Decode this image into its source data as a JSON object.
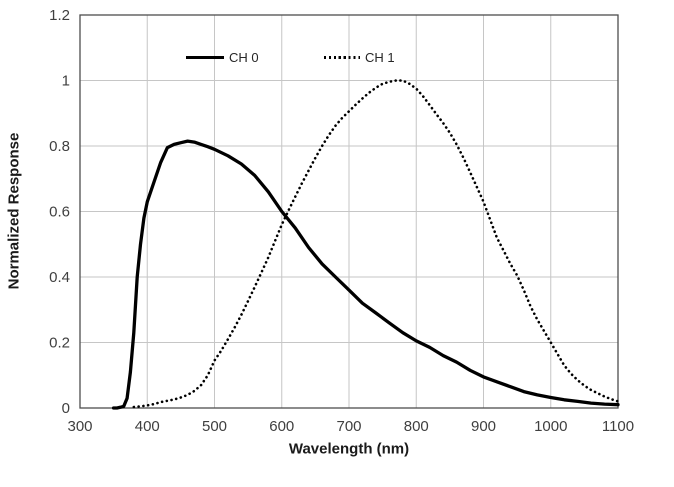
{
  "chart_data": {
    "type": "line",
    "title": "",
    "xlabel": "Wavelength (nm)",
    "ylabel": "Normalized Response",
    "xlim": [
      300,
      1100
    ],
    "ylim": [
      0,
      1.2
    ],
    "grid": true,
    "legend_position": "top-inside",
    "x_ticks": [
      300,
      400,
      500,
      600,
      700,
      800,
      900,
      1000,
      1100
    ],
    "x_tick_labels": [
      "300",
      "400",
      "500",
      "600",
      "700",
      "800",
      "900",
      "1000",
      "1100"
    ],
    "y_ticks": [
      0,
      0.2,
      0.4,
      0.6,
      0.8,
      1.0,
      1.2
    ],
    "y_tick_labels": [
      "0",
      "0.2",
      "0.4",
      "0.6",
      "0.8",
      "1",
      "1.2"
    ],
    "series": [
      {
        "name": "CH 0",
        "style": "solid",
        "color": "#000000",
        "x": [
          350,
          355,
          360,
          365,
          370,
          375,
          380,
          385,
          390,
          395,
          400,
          410,
          420,
          430,
          440,
          450,
          460,
          470,
          480,
          490,
          500,
          520,
          540,
          560,
          580,
          600,
          620,
          640,
          660,
          680,
          700,
          720,
          740,
          760,
          780,
          800,
          820,
          840,
          860,
          880,
          900,
          920,
          940,
          960,
          980,
          1000,
          1020,
          1040,
          1060,
          1080,
          1100
        ],
        "y": [
          0,
          0,
          0.002,
          0.005,
          0.03,
          0.11,
          0.23,
          0.4,
          0.5,
          0.58,
          0.63,
          0.69,
          0.75,
          0.795,
          0.805,
          0.81,
          0.815,
          0.812,
          0.805,
          0.798,
          0.79,
          0.77,
          0.745,
          0.71,
          0.66,
          0.6,
          0.55,
          0.49,
          0.44,
          0.4,
          0.36,
          0.32,
          0.29,
          0.26,
          0.23,
          0.205,
          0.185,
          0.16,
          0.14,
          0.115,
          0.095,
          0.08,
          0.065,
          0.05,
          0.04,
          0.032,
          0.025,
          0.02,
          0.015,
          0.012,
          0.01
        ]
      },
      {
        "name": "CH 1",
        "style": "dotted",
        "color": "#000000",
        "x": [
          380,
          390,
          400,
          410,
          420,
          430,
          440,
          450,
          460,
          470,
          480,
          490,
          500,
          510,
          520,
          530,
          540,
          550,
          560,
          570,
          580,
          590,
          600,
          610,
          620,
          630,
          640,
          650,
          660,
          670,
          680,
          690,
          700,
          710,
          720,
          730,
          740,
          750,
          760,
          770,
          780,
          790,
          800,
          810,
          820,
          830,
          840,
          850,
          860,
          870,
          880,
          890,
          900,
          910,
          920,
          930,
          940,
          950,
          960,
          970,
          980,
          990,
          1000,
          1010,
          1020,
          1030,
          1040,
          1050,
          1060,
          1070,
          1080,
          1090,
          1100
        ],
        "y": [
          0.003,
          0.005,
          0.008,
          0.012,
          0.018,
          0.022,
          0.026,
          0.032,
          0.04,
          0.052,
          0.07,
          0.1,
          0.145,
          0.175,
          0.21,
          0.246,
          0.285,
          0.327,
          0.37,
          0.415,
          0.46,
          0.51,
          0.56,
          0.603,
          0.645,
          0.686,
          0.725,
          0.764,
          0.8,
          0.833,
          0.862,
          0.886,
          0.906,
          0.926,
          0.945,
          0.963,
          0.978,
          0.99,
          0.996,
          1.0,
          1.0,
          0.99,
          0.975,
          0.952,
          0.925,
          0.897,
          0.87,
          0.84,
          0.805,
          0.765,
          0.72,
          0.675,
          0.63,
          0.575,
          0.52,
          0.48,
          0.44,
          0.405,
          0.36,
          0.31,
          0.27,
          0.235,
          0.2,
          0.165,
          0.13,
          0.105,
          0.085,
          0.068,
          0.055,
          0.045,
          0.035,
          0.027,
          0.02
        ]
      }
    ]
  },
  "colors": {
    "background": "#ffffff",
    "gridline": "#c6c6c6",
    "plot_border": "#4d4d4d",
    "tick_text": "#3f3f3f",
    "axis_title_text": "#1a1a1a",
    "series": "#000000"
  }
}
